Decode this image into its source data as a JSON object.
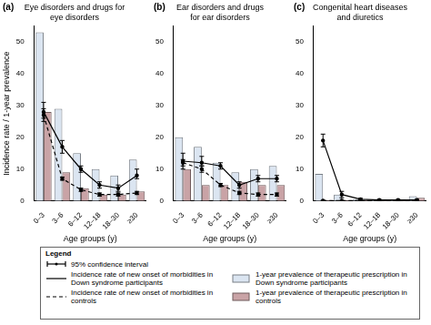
{
  "chart_data": [
    {
      "type": "bar",
      "panel_label": "(a)",
      "title": "Eye disorders and drugs for eye disorders",
      "x_label": "Age groups (y)",
      "y_label": "Incidence rate / 1-year prevalence",
      "categories": [
        "0–3",
        "3–6",
        "6–12",
        "12–18",
        "18–30",
        "≥30"
      ],
      "ylim": [
        0,
        55
      ],
      "yticks": [
        0,
        10,
        20,
        30,
        40,
        50
      ],
      "grid": false,
      "series": [
        {
          "name": "1-year prevalence of therapeutic prescription in Down syndrome participants",
          "type": "bar",
          "color": "#dbe5f1",
          "values": [
            53,
            29,
            15,
            10,
            8,
            13
          ]
        },
        {
          "name": "1-year prevalence of therapeutic prescription in controls",
          "type": "bar",
          "color": "#c9a3a6",
          "values": [
            28,
            9,
            4,
            2,
            2,
            3
          ]
        },
        {
          "name": "Incidence rate of new onset of morbidities in Down syndrome participants",
          "type": "line",
          "color": "#000000",
          "line_style": "solid",
          "marker": "circle",
          "values": [
            28,
            17,
            10,
            5,
            4,
            8
          ],
          "ci_low": [
            25,
            15,
            9,
            4,
            3,
            7
          ],
          "ci_high": [
            31,
            19,
            11,
            6,
            5,
            10
          ]
        },
        {
          "name": "Incidence rate of new onset of morbidities in controls",
          "type": "line",
          "color": "#000000",
          "line_style": "dashed",
          "marker": "circle",
          "values": [
            27,
            7,
            3.5,
            2,
            2,
            2.5
          ],
          "ci_low": [
            26,
            6.5,
            3,
            1.5,
            1.5,
            2
          ],
          "ci_high": [
            29,
            7.5,
            4,
            2.5,
            2.5,
            3
          ]
        }
      ]
    },
    {
      "type": "bar",
      "panel_label": "(b)",
      "title": "Ear disorders and drugs for ear disorders",
      "x_label": "Age groups (y)",
      "categories": [
        "0–3",
        "3–6",
        "6–12",
        "12–18",
        "18–30",
        "≥30"
      ],
      "ylim": [
        0,
        55
      ],
      "yticks": [
        0,
        10,
        20,
        30,
        40,
        50
      ],
      "grid": false,
      "series": [
        {
          "name": "1-year prevalence of therapeutic prescription in Down syndrome participants",
          "type": "bar",
          "color": "#dbe5f1",
          "values": [
            20,
            17,
            12,
            9,
            10,
            11
          ]
        },
        {
          "name": "1-year prevalence of therapeutic prescription in controls",
          "type": "bar",
          "color": "#c9a3a6",
          "values": [
            10,
            5,
            5,
            6,
            5,
            5
          ]
        },
        {
          "name": "Incidence rate of new onset of morbidities in Down syndrome participants",
          "type": "line",
          "color": "#000000",
          "line_style": "solid",
          "marker": "circle",
          "values": [
            12.5,
            12,
            11,
            5,
            7,
            7
          ],
          "ci_low": [
            10,
            11,
            10,
            4,
            6,
            6
          ],
          "ci_high": [
            15,
            14,
            12,
            6,
            8,
            8
          ]
        },
        {
          "name": "Incidence rate of new onset of morbidities in controls",
          "type": "line",
          "color": "#000000",
          "line_style": "dashed",
          "marker": "circle",
          "values": [
            12,
            10,
            5,
            2.5,
            2,
            2
          ],
          "ci_low": [
            11,
            9,
            4.5,
            2,
            1.5,
            1.5
          ],
          "ci_high": [
            13,
            11,
            5.5,
            3,
            2.5,
            2.5
          ]
        }
      ]
    },
    {
      "type": "bar",
      "panel_label": "(c)",
      "title": "Congenital heart diseases and diuretics",
      "x_label": "Age groups (y)",
      "categories": [
        "0–3",
        "3–6",
        "6–12",
        "12–18",
        "18–30",
        "≥30"
      ],
      "ylim": [
        0,
        55
      ],
      "yticks": [
        0,
        10,
        20,
        30,
        40,
        50
      ],
      "grid": false,
      "series": [
        {
          "name": "1-year prevalence of therapeutic prescription in Down syndrome participants",
          "type": "bar",
          "color": "#dbe5f1",
          "values": [
            8.5,
            2,
            0.5,
            0.5,
            0.5,
            1.5
          ]
        },
        {
          "name": "1-year prevalence of therapeutic prescription in controls",
          "type": "bar",
          "color": "#c9a3a6",
          "values": [
            0.3,
            0.2,
            0.2,
            0.2,
            0.3,
            1
          ]
        },
        {
          "name": "Incidence rate of new onset of morbidities in Down syndrome participants",
          "type": "line",
          "color": "#000000",
          "line_style": "solid",
          "marker": "circle",
          "values": [
            19,
            2,
            0.5,
            0.3,
            0.3,
            0.3
          ],
          "ci_low": [
            17,
            1,
            0.2,
            0.1,
            0.1,
            0.1
          ],
          "ci_high": [
            21,
            3,
            0.8,
            0.5,
            0.5,
            0.5
          ]
        },
        {
          "name": "Incidence rate of new onset of morbidities in controls",
          "type": "line",
          "color": "#000000",
          "line_style": "dashed",
          "marker": "circle",
          "values": [
            0.1,
            0.1,
            0.1,
            0.1,
            0.1,
            0.1
          ],
          "ci_low": [
            0,
            0,
            0,
            0,
            0,
            0
          ],
          "ci_high": [
            0.2,
            0.2,
            0.2,
            0.2,
            0.2,
            0.2
          ]
        }
      ]
    }
  ],
  "legend_box": {
    "title": "Legend",
    "error_bar_label": "95% confidence interval"
  }
}
